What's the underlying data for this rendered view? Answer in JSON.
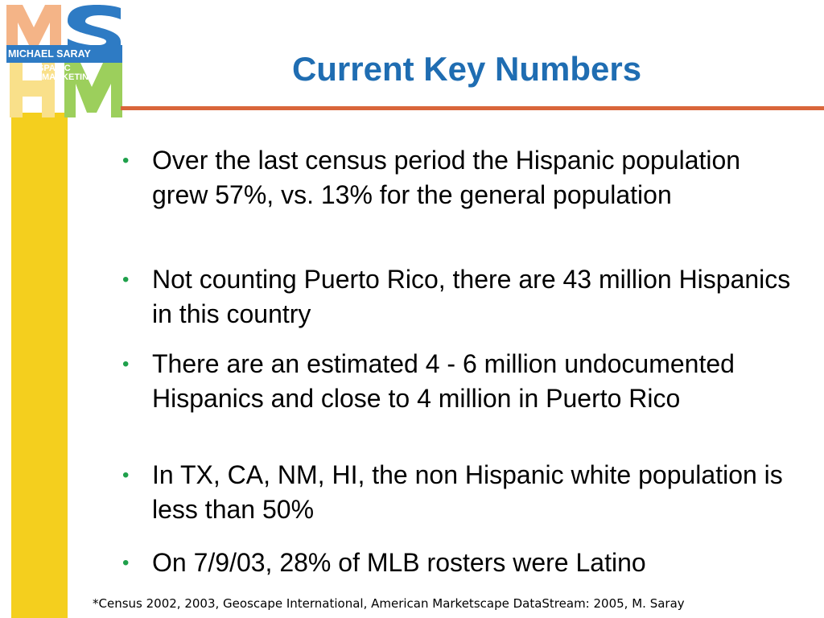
{
  "logo": {
    "line1": "MICHAEL SARAY",
    "line2": "HISPANIC",
    "line3": "MARKETING",
    "letters": [
      "M",
      "S",
      "H",
      "M"
    ]
  },
  "slide": {
    "title": "Current Key Numbers",
    "bullet_glyph": "•",
    "bullets": [
      {
        "text": "Over the last census period the Hispanic population grew 57%, vs. 13% for the general population"
      },
      {
        "text": "Not counting Puerto Rico, there are 43 million Hispanics in this country"
      },
      {
        "text": "There are an estimated 4 - 6 million undocumented Hispanics and close to 4 million in Puerto Rico"
      },
      {
        "text": "In TX, CA, NM, HI, the non Hispanic white population is less than 50%"
      },
      {
        "text": "On 7/9/03, 28% of MLB rosters were Latino"
      }
    ],
    "footnote": "*Census 2002, 2003, Geoscape International, American Marketscape DataStream: 2005, M. Saray"
  },
  "colors": {
    "title": "#1f6db2",
    "rule": "#d9663a",
    "bullet": "#1fa04b",
    "side_bar": "#f4cf1e",
    "logo_orange": "#f2a878",
    "logo_blue": "#2e7bc4",
    "logo_green": "#8cc540"
  }
}
